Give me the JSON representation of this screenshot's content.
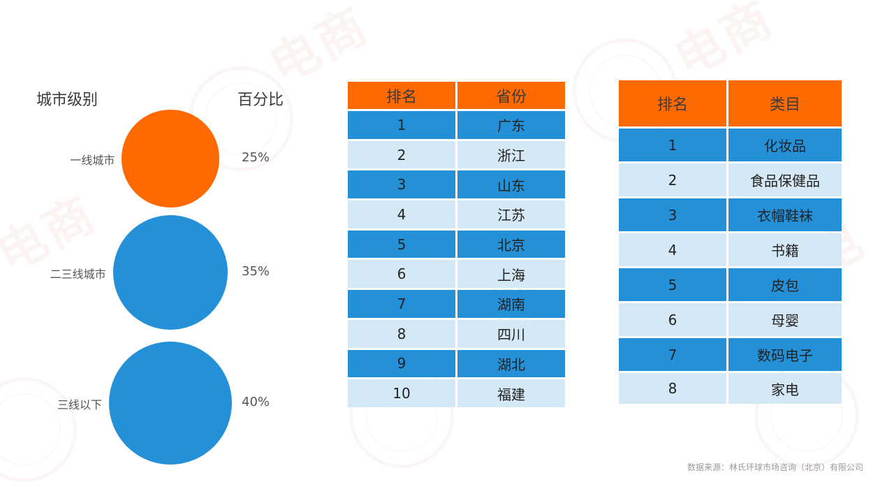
{
  "colors": {
    "orange": "#FF6A00",
    "blue": "#2490D8",
    "light_blue": "#D5E8F5"
  },
  "city_chart": {
    "header_level": "城市级别",
    "header_percent": "百分比"
  },
  "chart_data": [
    {
      "type": "bubble",
      "categories": [
        "一线城市",
        "二三线城市",
        "三线以下"
      ],
      "values": [
        25,
        35,
        40
      ],
      "value_labels": [
        "25%",
        "35%",
        "40%"
      ],
      "colors": [
        "#FF6A00",
        "#2490D8",
        "#2490D8"
      ]
    },
    {
      "type": "table",
      "columns": [
        "排名",
        "省份"
      ],
      "rows": [
        [
          "1",
          "广东"
        ],
        [
          "2",
          "浙江"
        ],
        [
          "3",
          "山东"
        ],
        [
          "4",
          "江苏"
        ],
        [
          "5",
          "北京"
        ],
        [
          "6",
          "上海"
        ],
        [
          "7",
          "湖南"
        ],
        [
          "8",
          "四川"
        ],
        [
          "9",
          "湖北"
        ],
        [
          "10",
          "福建"
        ]
      ]
    },
    {
      "type": "table",
      "columns": [
        "排名",
        "类目"
      ],
      "rows": [
        [
          "1",
          "化妆品"
        ],
        [
          "2",
          "食品保健品"
        ],
        [
          "3",
          "衣帽鞋袜"
        ],
        [
          "4",
          "书籍"
        ],
        [
          "5",
          "皮包"
        ],
        [
          "6",
          "母婴"
        ],
        [
          "7",
          "数码电子"
        ],
        [
          "8",
          "家电"
        ]
      ]
    }
  ],
  "source": "数据来源：林氏环球市场咨询（北京）有限公司"
}
